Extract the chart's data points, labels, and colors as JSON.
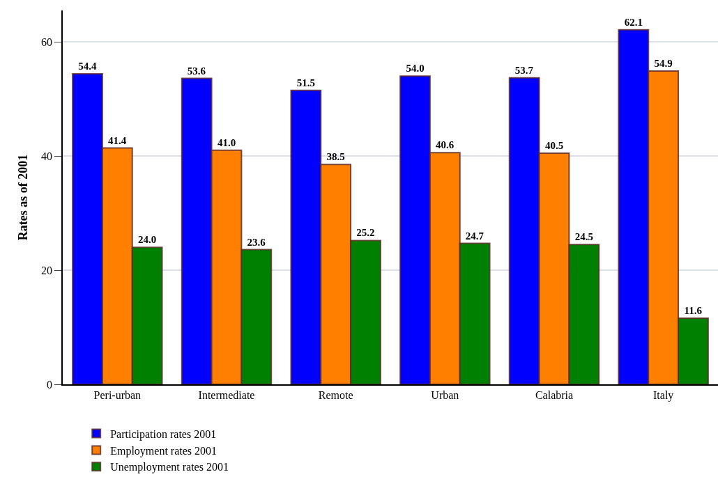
{
  "chart_data": {
    "type": "bar",
    "ylabel": "Rates as of 2001",
    "categories": [
      "Peri-urban",
      "Intermediate",
      "Remote",
      "Urban",
      "Calabria",
      "Italy"
    ],
    "series": [
      {
        "name": "Participation rates 2001",
        "color": "#0000ff",
        "values": [
          54.4,
          53.6,
          51.5,
          54.0,
          53.7,
          62.1
        ],
        "value_labels": [
          "54.4",
          "53.6",
          "51.5",
          "54.0",
          "53.7",
          "62.1"
        ]
      },
      {
        "name": "Employment rates 2001",
        "color": "#ff8000",
        "values": [
          41.4,
          41.0,
          38.5,
          40.6,
          40.5,
          54.9
        ],
        "value_labels": [
          "41.4",
          "41.0",
          "38.5",
          "40.6",
          "40.5",
          "54.9"
        ]
      },
      {
        "name": "Unemployment rates 2001",
        "color": "#008000",
        "values": [
          24.0,
          23.6,
          25.2,
          24.7,
          24.5,
          11.6
        ],
        "value_labels": [
          "24.0",
          "23.6",
          "25.2",
          "24.7",
          "24.5",
          "11.6"
        ]
      }
    ],
    "ylim": [
      0,
      65.5
    ],
    "yticks": [
      0,
      20,
      40,
      60
    ],
    "grid": "y",
    "legend": "bottom"
  }
}
